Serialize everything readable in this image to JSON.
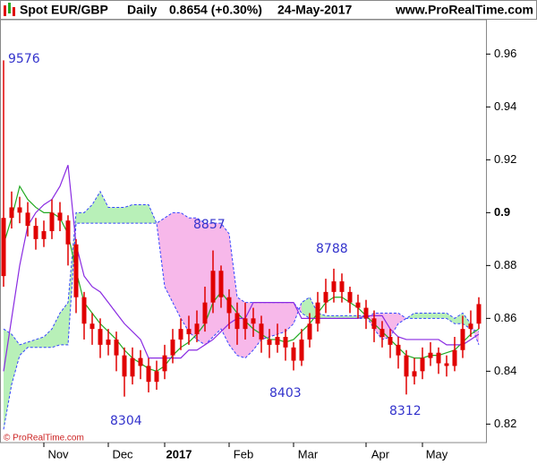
{
  "header": {
    "symbol": "Spot EUR/GBP",
    "period": "Daily",
    "quote": "0.8654 (+0.30%)",
    "date": "24-May-2017",
    "source": "www.ProRealTime.com"
  },
  "chart_data": {
    "type": "candlestick",
    "copyright": "© ProRealTime.com",
    "categories": [
      null,
      null,
      null,
      null,
      null,
      null,
      null,
      "Nov",
      null,
      null,
      null,
      null,
      null,
      null,
      null,
      "Dec",
      null,
      null,
      null,
      null,
      null,
      null,
      "2017",
      null,
      null,
      null,
      null,
      null,
      null,
      null,
      "Feb",
      null,
      null,
      null,
      null,
      null,
      null,
      null,
      "Mar",
      null,
      null,
      null,
      null,
      null,
      null,
      null,
      null,
      "Apr",
      null,
      null,
      null,
      null,
      null,
      null,
      "May",
      null,
      null,
      null,
      null,
      null
    ],
    "open": [
      0.876,
      0.898,
      0.902,
      0.9,
      0.895,
      0.89,
      0.893,
      0.9,
      0.897,
      0.888,
      0.868,
      0.858,
      0.856,
      0.85,
      0.852,
      0.846,
      0.838,
      0.845,
      0.842,
      0.836,
      0.84,
      0.846,
      0.852,
      0.856,
      0.854,
      0.858,
      0.866,
      0.878,
      0.868,
      0.862,
      0.856,
      0.86,
      0.858,
      0.852,
      0.85,
      0.853,
      0.849,
      0.844,
      0.852,
      0.858,
      0.866,
      0.87,
      0.874,
      0.87,
      0.866,
      0.864,
      0.86,
      0.856,
      0.853,
      0.85,
      0.846,
      0.838,
      0.84,
      0.845,
      0.847,
      0.843,
      0.842,
      0.848,
      0.856,
      0.858
    ],
    "high": [
      0.9576,
      0.908,
      0.906,
      0.904,
      0.898,
      0.897,
      0.905,
      0.904,
      0.899,
      0.89,
      0.87,
      0.862,
      0.86,
      0.856,
      0.855,
      0.849,
      0.849,
      0.848,
      0.845,
      0.844,
      0.85,
      0.856,
      0.86,
      0.861,
      0.863,
      0.872,
      0.8857,
      0.88,
      0.871,
      0.866,
      0.866,
      0.864,
      0.861,
      0.856,
      0.858,
      0.856,
      0.851,
      0.856,
      0.862,
      0.87,
      0.875,
      0.8788,
      0.877,
      0.872,
      0.869,
      0.867,
      0.863,
      0.859,
      0.856,
      0.853,
      0.848,
      0.845,
      0.849,
      0.851,
      0.849,
      0.846,
      0.853,
      0.861,
      0.863,
      0.868
    ],
    "low": [
      0.872,
      0.894,
      0.896,
      0.891,
      0.886,
      0.887,
      0.89,
      0.893,
      0.88,
      0.862,
      0.852,
      0.85,
      0.845,
      0.846,
      0.84,
      0.8304,
      0.835,
      0.837,
      0.832,
      0.833,
      0.837,
      0.843,
      0.848,
      0.85,
      0.851,
      0.855,
      0.862,
      0.864,
      0.856,
      0.85,
      0.852,
      0.853,
      0.847,
      0.845,
      0.847,
      0.844,
      0.8403,
      0.842,
      0.849,
      0.855,
      0.862,
      0.866,
      0.866,
      0.862,
      0.86,
      0.856,
      0.851,
      0.849,
      0.845,
      0.841,
      0.8312,
      0.835,
      0.837,
      0.842,
      0.839,
      0.838,
      0.84,
      0.845,
      0.853,
      0.856
    ],
    "close": [
      0.898,
      0.902,
      0.9,
      0.895,
      0.89,
      0.893,
      0.9,
      0.897,
      0.888,
      0.868,
      0.858,
      0.856,
      0.85,
      0.852,
      0.846,
      0.838,
      0.845,
      0.842,
      0.836,
      0.84,
      0.846,
      0.852,
      0.856,
      0.854,
      0.858,
      0.866,
      0.878,
      0.868,
      0.862,
      0.856,
      0.86,
      0.858,
      0.852,
      0.85,
      0.853,
      0.849,
      0.844,
      0.852,
      0.858,
      0.866,
      0.87,
      0.874,
      0.87,
      0.866,
      0.864,
      0.86,
      0.856,
      0.853,
      0.85,
      0.846,
      0.838,
      0.84,
      0.845,
      0.847,
      0.843,
      0.842,
      0.848,
      0.856,
      0.858,
      0.8654
    ],
    "color": "#e00000",
    "lines": [
      {
        "color": "#22aa22",
        "values": [
          0.888,
          0.898,
          0.91,
          0.905,
          0.902,
          0.9,
          0.9,
          0.898,
          0.892,
          0.878,
          0.866,
          0.862,
          0.858,
          0.855,
          0.852,
          0.848,
          0.845,
          0.843,
          0.841,
          0.84,
          0.842,
          0.846,
          0.849,
          0.851,
          0.854,
          0.858,
          0.866,
          0.87,
          0.866,
          0.862,
          0.859,
          0.856,
          0.854,
          0.852,
          0.852,
          0.851,
          0.852,
          0.855,
          0.858,
          0.862,
          0.866,
          0.868,
          0.868,
          0.866,
          0.864,
          0.861,
          0.858,
          0.855,
          0.852,
          0.849,
          0.846,
          0.845,
          0.845,
          0.846,
          0.846,
          0.847,
          0.848,
          0.851,
          0.854,
          0.856
        ]
      },
      {
        "color": "#8a2be2",
        "values": [
          0.84,
          0.86,
          0.88,
          0.895,
          0.9,
          0.903,
          0.905,
          0.91,
          0.918,
          0.888,
          0.876,
          0.872,
          0.87,
          0.866,
          0.862,
          0.858,
          0.855,
          0.852,
          0.845,
          0.845,
          0.845,
          0.845,
          0.845,
          0.848,
          0.848,
          0.85,
          0.852,
          0.855,
          0.858,
          0.86,
          0.86,
          0.866,
          0.866,
          0.866,
          0.866,
          0.866,
          0.866,
          0.86,
          0.86,
          0.86,
          0.86,
          0.86,
          0.86,
          0.86,
          0.86,
          0.861,
          0.861,
          0.861,
          0.856,
          0.853,
          0.852,
          0.852,
          0.852,
          0.852,
          0.852,
          0.85,
          0.85,
          0.85,
          0.852,
          0.854
        ]
      }
    ],
    "cloud": {
      "line_color": "#3344ff",
      "up_color": "#b8f0b8",
      "down_color": "#f7b8ea",
      "span_a": [
        0.856,
        0.854,
        0.85,
        0.851,
        0.852,
        0.853,
        0.856,
        0.862,
        0.866,
        0.9,
        0.9,
        0.903,
        0.908,
        0.902,
        0.902,
        0.902,
        0.903,
        0.903,
        0.903,
        0.896,
        0.872,
        0.866,
        0.86,
        0.855,
        0.852,
        0.85,
        0.853,
        0.856,
        0.85,
        0.846,
        0.845,
        0.848,
        0.852,
        0.853,
        0.854,
        0.855,
        0.858,
        0.866,
        0.868,
        0.862,
        0.861,
        0.861,
        0.861,
        0.861,
        0.861,
        0.861,
        0.856,
        0.852,
        0.853,
        0.858,
        0.86,
        0.862,
        0.862,
        0.862,
        0.862,
        0.862,
        0.86,
        0.862,
        0.858,
        0.85
      ],
      "span_b": [
        0.818,
        0.835,
        0.846,
        0.849,
        0.849,
        0.849,
        0.849,
        0.85,
        0.85,
        0.896,
        0.896,
        0.896,
        0.896,
        0.896,
        0.896,
        0.896,
        0.896,
        0.896,
        0.896,
        0.896,
        0.898,
        0.9,
        0.9,
        0.898,
        0.898,
        0.896,
        0.896,
        0.896,
        0.892,
        0.868,
        0.866,
        0.866,
        0.866,
        0.866,
        0.866,
        0.866,
        0.866,
        0.862,
        0.86,
        0.86,
        0.86,
        0.86,
        0.86,
        0.86,
        0.86,
        0.86,
        0.862,
        0.862,
        0.862,
        0.862,
        0.86,
        0.86,
        0.86,
        0.86,
        0.86,
        0.86,
        0.858,
        0.858,
        0.856,
        0.855
      ]
    },
    "annotations": [
      "9576",
      "8857",
      "8304",
      "8403",
      "8788",
      "8312"
    ],
    "ylim": [
      0.813,
      0.973
    ],
    "yticks": [
      0.82,
      0.84,
      0.86,
      0.88,
      0.9,
      0.92,
      0.94,
      0.96
    ]
  }
}
